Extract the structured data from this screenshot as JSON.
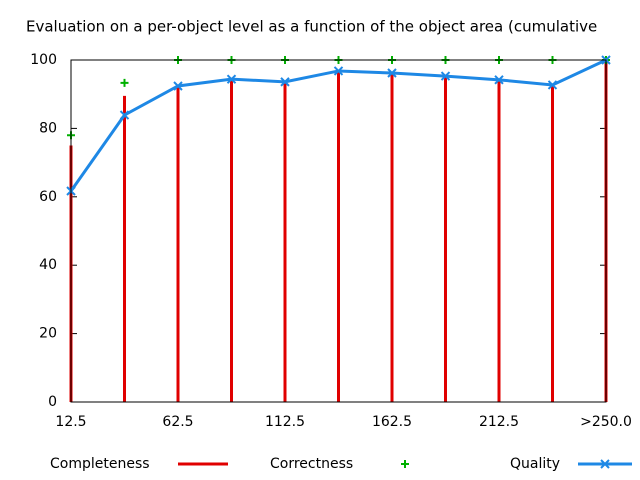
{
  "chart_data": {
    "type": "impulse-line",
    "title": "Evaluation on a per-object level as a function of the object area (cumulative",
    "categories": [
      "12.5",
      null,
      "62.5",
      null,
      "112.5",
      null,
      "162.5",
      null,
      "212.5",
      null,
      ">250.0"
    ],
    "series": [
      {
        "name": "Completeness",
        "style": "impulses",
        "color": "#e00000",
        "values": [
          75,
          89.5,
          92.5,
          94.5,
          93.5,
          97,
          96,
          95,
          94,
          92.5,
          100
        ]
      },
      {
        "name": "Correctness",
        "style": "points",
        "color": "#00b000",
        "values": [
          78,
          93.3,
          100,
          100,
          100,
          100,
          100,
          100,
          100,
          100,
          100
        ]
      },
      {
        "name": "Quality",
        "style": "linespoints",
        "color": "#1e88e5",
        "values": [
          61.7,
          83.9,
          92.4,
          94.4,
          93.6,
          96.8,
          96.2,
          95.3,
          94.2,
          92.7,
          100
        ]
      }
    ],
    "ylim": [
      0,
      100
    ],
    "yticks": [
      0,
      20,
      40,
      60,
      80,
      100
    ],
    "legend": "bottom"
  }
}
